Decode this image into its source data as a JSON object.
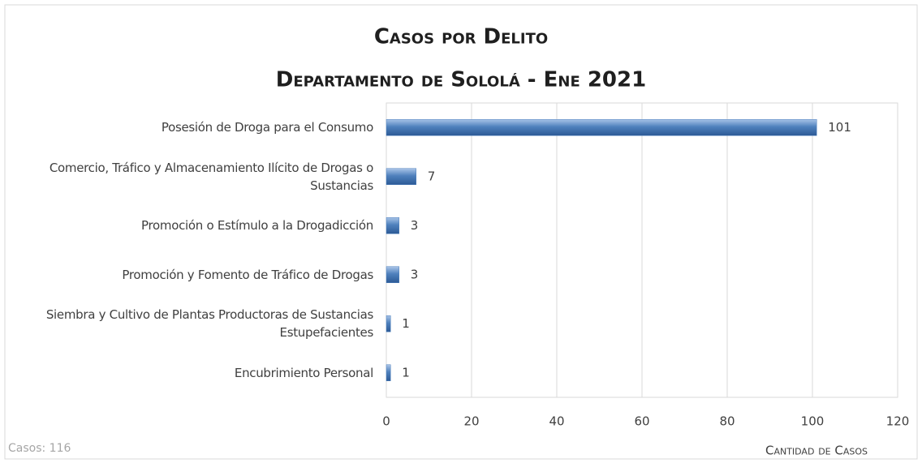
{
  "chart_data": {
    "type": "bar",
    "orientation": "horizontal",
    "title": "Casos por Delito",
    "subtitle": "Departamento de Sololá - Ene 2021",
    "categories": [
      "Posesión de Droga para el Consumo",
      "Comercio, Tráfico y Almacenamiento Ilícito de Drogas o Sustancias",
      "Promoción o Estímulo a la Drogadicción",
      "Promoción y Fomento de Tráfico de Drogas",
      "Siembra y Cultivo de Plantas Productoras de Sustancias Estupefacientes",
      "Encubrimiento Personal"
    ],
    "values": [
      101,
      7,
      3,
      3,
      1,
      1
    ],
    "color": "#4f81bd",
    "xlim": [
      0,
      120
    ],
    "xticks": [
      0,
      20,
      40,
      60,
      80,
      100,
      120
    ],
    "xlabel": "Cantidad de Casos",
    "annotation": "Casos: 116",
    "grid": true
  }
}
